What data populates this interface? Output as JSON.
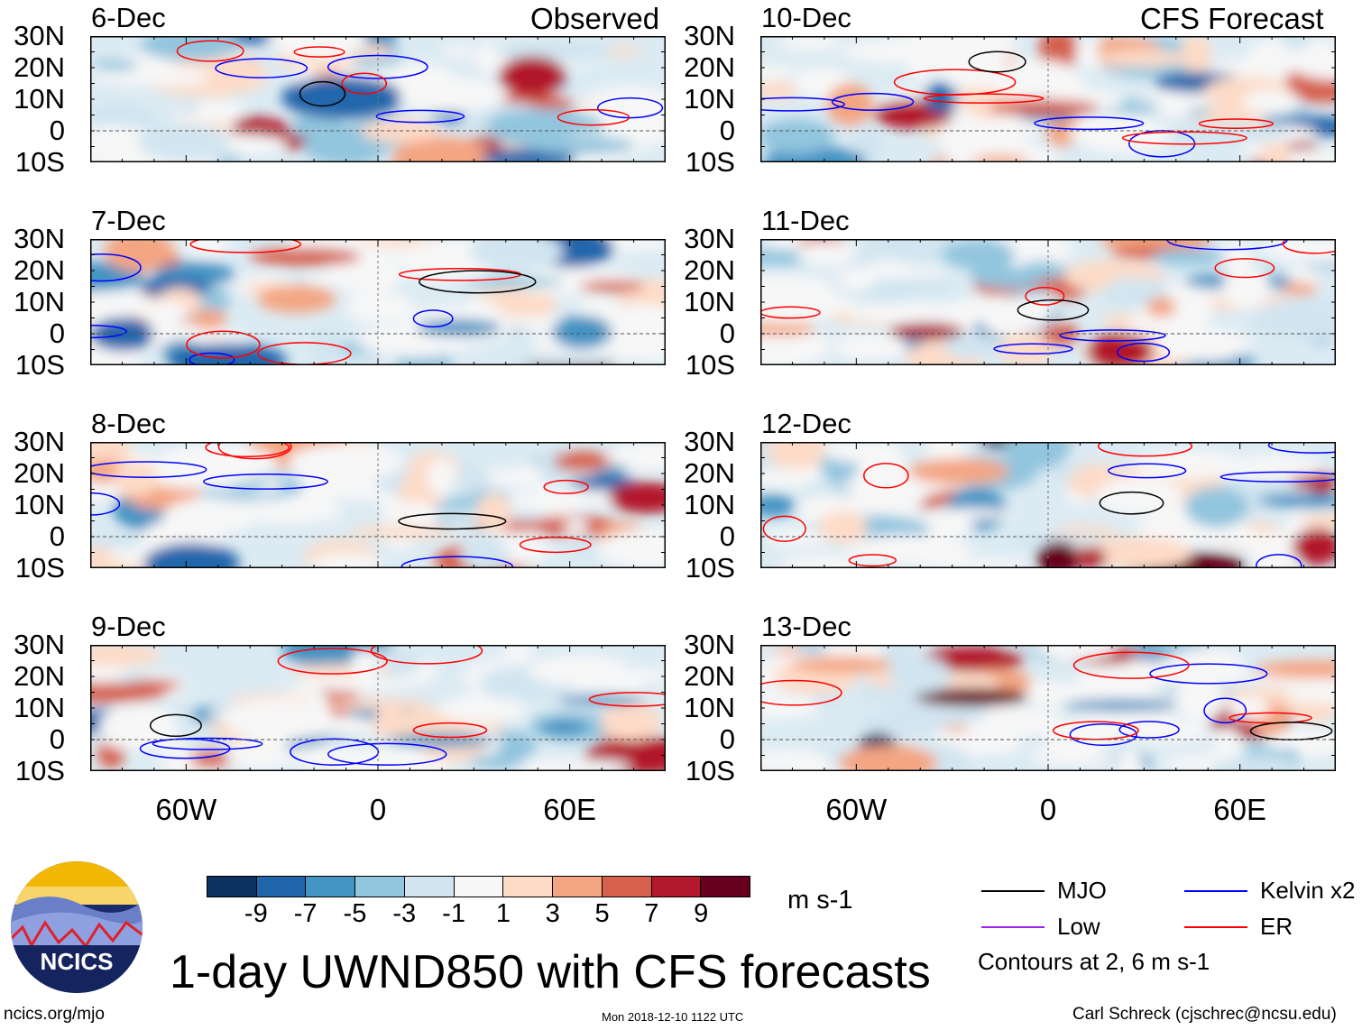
{
  "chart_data": {
    "type": "heatmap",
    "title": "1-day UWND850 with CFS forecasts",
    "variable_units": "m s-1",
    "lat_range": [
      -10,
      30
    ],
    "lon_range": [
      -90,
      90
    ],
    "lat_ticks": [
      "30N",
      "20N",
      "10N",
      "0",
      "10S"
    ],
    "lon_ticks": [
      "60W",
      "0",
      "60E"
    ],
    "panels_left_label": "Observed",
    "panels_right_label": "CFS Forecast",
    "panels_left": [
      "6-Dec",
      "7-Dec",
      "8-Dec",
      "9-Dec"
    ],
    "panels_right": [
      "10-Dec",
      "11-Dec",
      "12-Dec",
      "13-Dec"
    ],
    "colorbar": {
      "labels": [
        "-9",
        "-7",
        "-5",
        "-3",
        "-1",
        "1",
        "3",
        "5",
        "7",
        "9"
      ],
      "colors": [
        "#0b3161",
        "#2166ac",
        "#4393c3",
        "#92c5de",
        "#d1e5f0",
        "#f7f7f7",
        "#fddbc7",
        "#f4a582",
        "#d6604d",
        "#b2182b",
        "#67001f"
      ]
    },
    "legend": [
      {
        "label": "MJO",
        "color": "#000000"
      },
      {
        "label": "Kelvin x2",
        "color": "#0000ff"
      },
      {
        "label": "Low",
        "color": "#a020f0"
      },
      {
        "label": "ER",
        "color": "#ff0000"
      }
    ],
    "contour_note": "Contours at 2, 6 m s-1"
  },
  "footer": {
    "logo_text": "NCICS",
    "url": "ncics.org/mjo",
    "timestamp": "Mon 2018-12-10 1122 UTC",
    "credit": "Carl Schreck (cjschrec@ncsu.edu)"
  }
}
